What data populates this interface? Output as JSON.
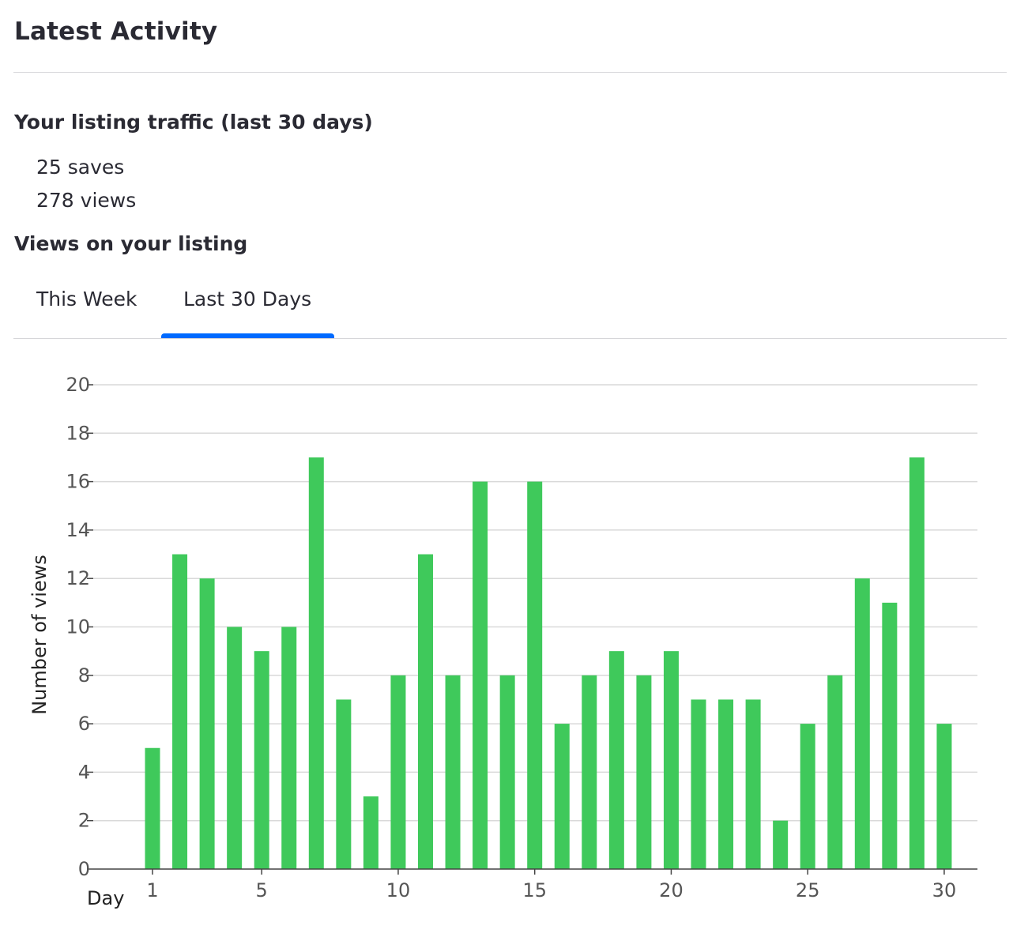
{
  "header": {
    "title": "Latest Activity"
  },
  "traffic": {
    "heading": "Your listing traffic (last 30 days)",
    "saves": "25 saves",
    "views": "278 views"
  },
  "views_section": {
    "heading": "Views on your listing"
  },
  "tabs": [
    {
      "label": "This Week",
      "active": false
    },
    {
      "label": "Last 30 Days",
      "active": true
    }
  ],
  "colors": {
    "bar": "#3fc95b",
    "tab_indicator": "#006aff",
    "grid": "#d9d9d9",
    "axis": "#444444"
  },
  "chart_data": {
    "type": "bar",
    "xlabel": "Day",
    "ylabel": "Number of views",
    "ylim": [
      0,
      20
    ],
    "yticks": [
      0,
      2,
      4,
      6,
      8,
      10,
      12,
      14,
      16,
      18,
      20
    ],
    "xticks": [
      1,
      5,
      10,
      15,
      20,
      25,
      30
    ],
    "grid": true,
    "x": [
      1,
      2,
      3,
      4,
      5,
      6,
      7,
      8,
      9,
      10,
      11,
      12,
      13,
      14,
      15,
      16,
      17,
      18,
      19,
      20,
      21,
      22,
      23,
      24,
      25,
      26,
      27,
      28,
      29,
      30
    ],
    "values": [
      5,
      13,
      12,
      10,
      9,
      10,
      17,
      7,
      3,
      8,
      13,
      8,
      16,
      8,
      16,
      6,
      8,
      9,
      8,
      9,
      7,
      7,
      7,
      2,
      6,
      8,
      12,
      11,
      17,
      6
    ]
  }
}
